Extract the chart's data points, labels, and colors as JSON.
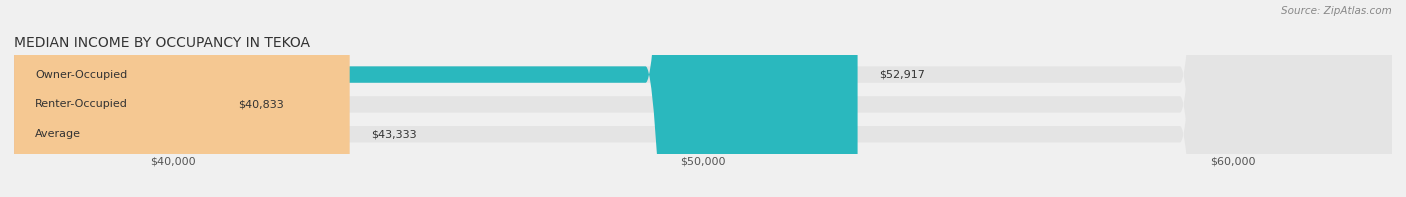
{
  "title": "MEDIAN INCOME BY OCCUPANCY IN TEKOA",
  "source": "Source: ZipAtlas.com",
  "categories": [
    "Owner-Occupied",
    "Renter-Occupied",
    "Average"
  ],
  "values": [
    52917,
    40833,
    43333
  ],
  "bar_colors": [
    "#2ab8be",
    "#b8a0c8",
    "#f5c892"
  ],
  "bar_labels": [
    "$52,917",
    "$40,833",
    "$43,333"
  ],
  "xlim_min": 37000,
  "xlim_max": 63000,
  "x_ticks": [
    40000,
    50000,
    60000
  ],
  "x_tick_labels": [
    "$40,000",
    "$50,000",
    "$60,000"
  ],
  "bg_color": "#f0f0f0",
  "bar_bg_color": "#e4e4e4",
  "bar_height": 0.55,
  "title_fontsize": 10,
  "label_fontsize": 8,
  "tick_fontsize": 8,
  "source_fontsize": 7.5
}
